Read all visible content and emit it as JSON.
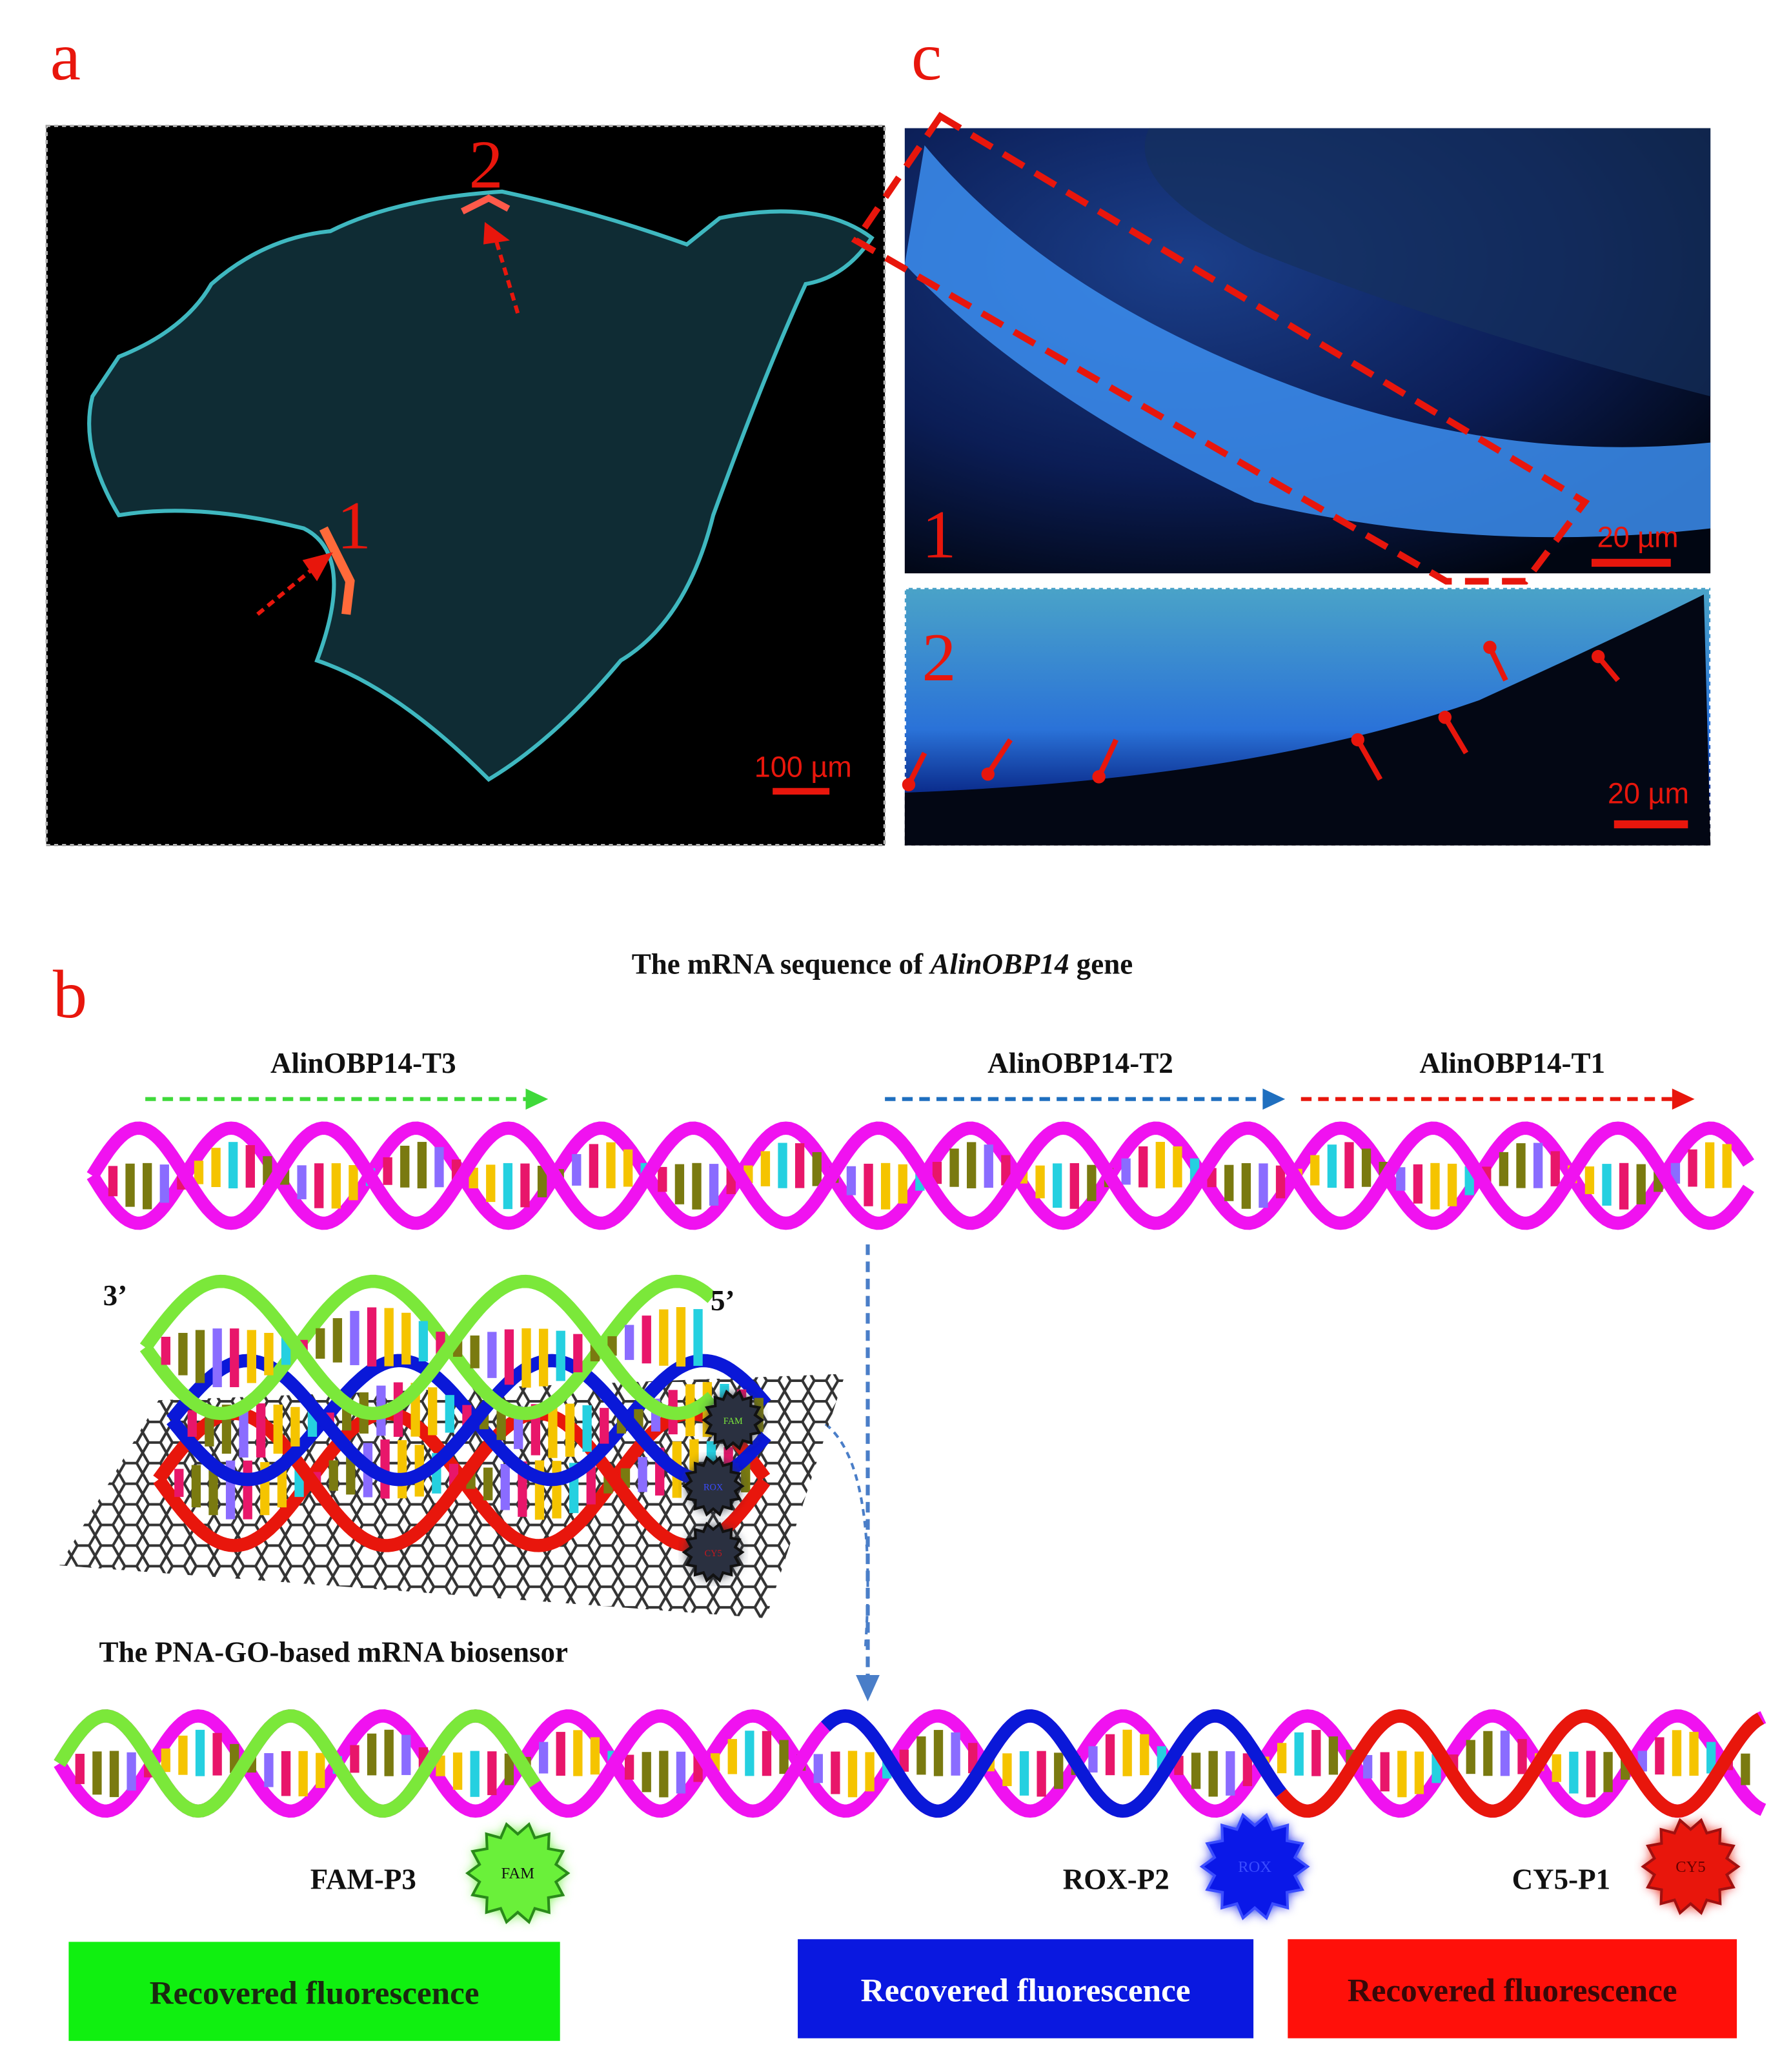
{
  "panels": {
    "a": {
      "label": "a",
      "markers": [
        "1",
        "2"
      ],
      "scale_bar": "100 µm"
    },
    "c": {
      "label": "c",
      "inset1": {
        "marker": "1",
        "scale_bar": "20 µm"
      },
      "inset2": {
        "marker": "2",
        "scale_bar": "20 µm"
      }
    },
    "b": {
      "label": "b",
      "title": {
        "prefix": "The mRNA sequence of ",
        "gene": "AlinOBP14",
        "suffix": " gene"
      },
      "targets": [
        "AlinOBP14-T3",
        "AlinOBP14-T2",
        "AlinOBP14-T1"
      ],
      "probe_ends": [
        "3’",
        "5’"
      ],
      "biosensor_caption": "The PNA-GO-based mRNA biosensor",
      "probes": [
        {
          "name": "FAM-P3",
          "dye": "FAM",
          "result": "Recovered fluorescence"
        },
        {
          "name": "ROX-P2",
          "dye": "ROX",
          "result": "Recovered fluorescence"
        },
        {
          "name": "CY5-P1",
          "dye": "CY5",
          "result": "Recovered fluorescence"
        }
      ]
    }
  }
}
